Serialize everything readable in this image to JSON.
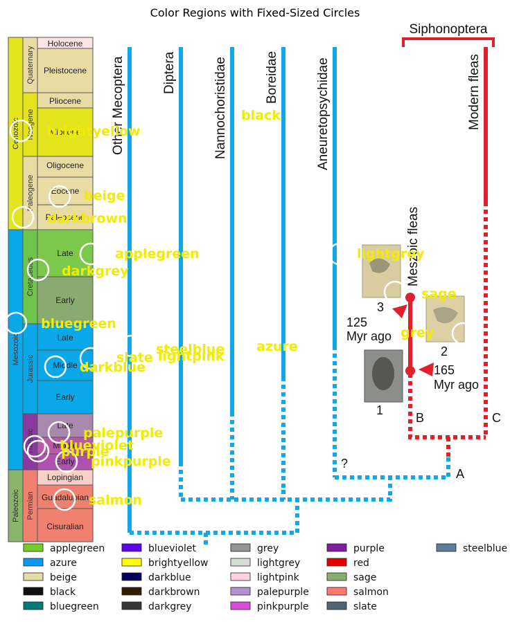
{
  "title": "Color Regions with Fixed-Sized Circles",
  "chart_data": {
    "type": "diagram",
    "timescale": {
      "eras": [
        "Cenozoic",
        "Mesozoic",
        "Paleozoic"
      ],
      "periods": [
        "Quaternary",
        "Neogene",
        "Paleogene",
        "Cretaceous",
        "Jurassic",
        "Triassic",
        "Permian"
      ],
      "epochs": [
        "Holocene",
        "Pleistocene",
        "Pliocene",
        "Miocene",
        "Oligocene",
        "Eocene",
        "Paleocene",
        "Late",
        "Early",
        "Late",
        "Middle",
        "Early",
        "Late",
        "Middle",
        "Early",
        "Lopingian",
        "Guadalupian",
        "Cisuralian"
      ]
    },
    "taxa": [
      "Other Mecoptera",
      "Diptera",
      "Nannochoristidae",
      "Boreidae",
      "Aneuretopsychidae",
      "Modern fleas"
    ],
    "clade": "Siphonoptera",
    "clade_sub": "Meszoic fleas",
    "node_labels": [
      "A",
      "B",
      "C"
    ],
    "question_mark": "?",
    "time_notes": [
      {
        "value": "125",
        "unit": "Myr ago"
      },
      {
        "value": "165",
        "unit": "Myr ago"
      }
    ],
    "fossil_numbers": [
      "1",
      "2",
      "3"
    ],
    "region_labels": [
      "brightyellow",
      "black",
      "beige",
      "darkbrown",
      "applegreen",
      "lightgrey",
      "darkgrey",
      "sage",
      "bluegreen",
      "grey",
      "steelblue",
      "azure",
      "slate",
      "lightpink",
      "darkblue",
      "palepurple",
      "blueviolet",
      "purple",
      "pinkpurple",
      "salmon"
    ],
    "legend": [
      {
        "name": "applegreen",
        "color": "#76cd26"
      },
      {
        "name": "azure",
        "color": "#069af3"
      },
      {
        "name": "beige",
        "color": "#e6daa6"
      },
      {
        "name": "black",
        "color": "#111111"
      },
      {
        "name": "bluegreen",
        "color": "#017a79"
      },
      {
        "name": "blueviolet",
        "color": "#5d06e9"
      },
      {
        "name": "brightyellow",
        "color": "#fffd01"
      },
      {
        "name": "darkblue",
        "color": "#00035b"
      },
      {
        "name": "darkbrown",
        "color": "#341c02"
      },
      {
        "name": "darkgrey",
        "color": "#363737"
      },
      {
        "name": "grey",
        "color": "#929591"
      },
      {
        "name": "lightgrey",
        "color": "#d8dcd6"
      },
      {
        "name": "lightpink",
        "color": "#ffd1df"
      },
      {
        "name": "palepurple",
        "color": "#b790d4"
      },
      {
        "name": "pinkpurple",
        "color": "#db4bda"
      },
      {
        "name": "purple",
        "color": "#7e1e9c"
      },
      {
        "name": "red",
        "color": "#e50000"
      },
      {
        "name": "sage",
        "color": "#87ae73"
      },
      {
        "name": "salmon",
        "color": "#ff796c"
      },
      {
        "name": "slate",
        "color": "#516572"
      },
      {
        "name": "steelblue",
        "color": "#5a7d9a"
      }
    ]
  }
}
